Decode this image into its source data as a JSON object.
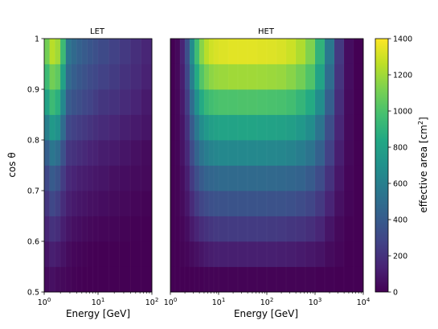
{
  "chart_data": [
    {
      "type": "heatmap",
      "title": "LET",
      "xlabel": "",
      "ylabel": "cos θ",
      "x_scale": "log",
      "xlim": [
        1,
        100
      ],
      "ylim": [
        0.5,
        1.0
      ],
      "x_ticks": [
        {
          "value": 1,
          "label": "10^0"
        },
        {
          "value": 10,
          "label": "10^1"
        },
        {
          "value": 100,
          "label": "10^2"
        }
      ],
      "y_ticks": [
        {
          "value": 0.5,
          "label": "0.5"
        },
        {
          "value": 0.6,
          "label": "0.6"
        },
        {
          "value": 0.7,
          "label": "0.7"
        },
        {
          "value": 0.8,
          "label": "0.8"
        },
        {
          "value": 0.9,
          "label": "0.9"
        },
        {
          "value": 1.0,
          "label": "1"
        }
      ],
      "energy_bin_edges_log10": [
        0.0,
        0.1,
        0.2,
        0.3,
        0.4,
        0.5,
        0.6,
        0.7,
        0.8,
        0.9,
        1.0,
        1.2,
        1.4,
        1.6,
        1.8,
        2.0
      ],
      "costheta_bin_edges": [
        0.5,
        0.55,
        0.6,
        0.65,
        0.7,
        0.75,
        0.8,
        0.85,
        0.9,
        0.95,
        1.0
      ],
      "values": [
        [
          40,
          60,
          40,
          30,
          20,
          10,
          5,
          0,
          0,
          0,
          0,
          0,
          0,
          0,
          0
        ],
        [
          80,
          120,
          100,
          70,
          40,
          25,
          15,
          10,
          5,
          0,
          0,
          0,
          0,
          0,
          0
        ],
        [
          150,
          200,
          180,
          120,
          80,
          60,
          50,
          40,
          30,
          25,
          20,
          15,
          10,
          5,
          0
        ],
        [
          220,
          300,
          260,
          180,
          120,
          100,
          85,
          75,
          65,
          60,
          50,
          40,
          30,
          20,
          10
        ],
        [
          300,
          400,
          350,
          250,
          160,
          140,
          120,
          110,
          100,
          90,
          80,
          60,
          50,
          40,
          30
        ],
        [
          420,
          550,
          500,
          350,
          220,
          200,
          180,
          160,
          140,
          130,
          110,
          100,
          80,
          60,
          40
        ],
        [
          600,
          750,
          700,
          500,
          300,
          270,
          250,
          230,
          210,
          190,
          170,
          150,
          120,
          100,
          80
        ],
        [
          800,
          950,
          880,
          650,
          400,
          360,
          330,
          300,
          280,
          250,
          220,
          200,
          170,
          140,
          100
        ],
        [
          950,
          1100,
          1050,
          800,
          480,
          420,
          380,
          350,
          320,
          300,
          270,
          240,
          200,
          170,
          130
        ],
        [
          1100,
          1250,
          1200,
          950,
          550,
          480,
          430,
          400,
          370,
          340,
          310,
          270,
          230,
          190,
          150
        ]
      ]
    },
    {
      "type": "heatmap",
      "title": "HET",
      "xlabel": "Energy [GeV]",
      "ylabel": "",
      "x_scale": "log",
      "xlim": [
        1,
        10000
      ],
      "ylim": [
        0.5,
        1.0
      ],
      "x_ticks": [
        {
          "value": 1,
          "label": "10^0"
        },
        {
          "value": 10,
          "label": "10^1"
        },
        {
          "value": 100,
          "label": "10^2"
        },
        {
          "value": 1000,
          "label": "10^3"
        },
        {
          "value": 10000,
          "label": "10^4"
        }
      ],
      "energy_bin_edges_log10": [
        0.0,
        0.1,
        0.2,
        0.3,
        0.4,
        0.5,
        0.6,
        0.7,
        0.8,
        0.9,
        1.0,
        1.2,
        1.4,
        1.6,
        1.8,
        2.0,
        2.2,
        2.4,
        2.6,
        2.8,
        3.0,
        3.2,
        3.4,
        3.6,
        3.8,
        4.0
      ],
      "costheta_bin_edges": [
        0.5,
        0.55,
        0.6,
        0.65,
        0.7,
        0.75,
        0.8,
        0.85,
        0.9,
        0.95,
        1.0
      ],
      "values": [
        [
          0,
          0,
          0,
          0,
          0,
          5,
          5,
          10,
          10,
          10,
          10,
          10,
          10,
          10,
          10,
          10,
          10,
          10,
          10,
          10,
          5,
          5,
          0,
          0,
          0
        ],
        [
          0,
          0,
          10,
          20,
          40,
          60,
          80,
          100,
          110,
          120,
          120,
          120,
          120,
          120,
          120,
          120,
          115,
          110,
          100,
          90,
          70,
          40,
          20,
          0,
          0
        ],
        [
          0,
          5,
          20,
          50,
          100,
          140,
          180,
          200,
          220,
          230,
          235,
          240,
          240,
          240,
          240,
          235,
          230,
          220,
          210,
          190,
          150,
          80,
          30,
          5,
          0
        ],
        [
          0,
          10,
          40,
          90,
          170,
          240,
          290,
          320,
          340,
          350,
          355,
          360,
          360,
          360,
          360,
          355,
          350,
          340,
          320,
          290,
          230,
          140,
          60,
          15,
          0
        ],
        [
          0,
          10,
          50,
          120,
          240,
          330,
          400,
          440,
          460,
          470,
          480,
          480,
          480,
          480,
          480,
          475,
          470,
          460,
          440,
          400,
          320,
          200,
          90,
          20,
          0
        ],
        [
          0,
          15,
          70,
          160,
          320,
          450,
          540,
          590,
          620,
          640,
          650,
          650,
          650,
          650,
          650,
          645,
          640,
          620,
          590,
          540,
          430,
          270,
          120,
          30,
          0
        ],
        [
          0,
          20,
          80,
          200,
          400,
          560,
          680,
          740,
          780,
          800,
          810,
          810,
          815,
          815,
          810,
          805,
          800,
          780,
          740,
          680,
          540,
          330,
          150,
          35,
          0
        ],
        [
          0,
          25,
          100,
          250,
          500,
          700,
          850,
          930,
          970,
          990,
          1000,
          1000,
          1005,
          1005,
          1000,
          995,
          990,
          970,
          920,
          850,
          680,
          420,
          180,
          40,
          0
        ],
        [
          0,
          30,
          120,
          300,
          600,
          850,
          1020,
          1110,
          1160,
          1180,
          1190,
          1200,
          1200,
          1200,
          1195,
          1190,
          1180,
          1150,
          1100,
          1010,
          810,
          500,
          210,
          50,
          0
        ],
        [
          0,
          30,
          140,
          340,
          680,
          960,
          1150,
          1250,
          1300,
          1320,
          1330,
          1340,
          1340,
          1340,
          1335,
          1330,
          1320,
          1290,
          1230,
          1130,
          900,
          560,
          230,
          50,
          0
        ]
      ]
    }
  ],
  "colorbar": {
    "label": "effective area [cm²]",
    "label_main": "effective area [cm",
    "label_sup": "2",
    "label_end": "]",
    "colormap": "viridis",
    "range": [
      0,
      1400
    ],
    "ticks": [
      "0",
      "200",
      "400",
      "600",
      "800",
      "1000",
      "1200",
      "1400"
    ]
  }
}
